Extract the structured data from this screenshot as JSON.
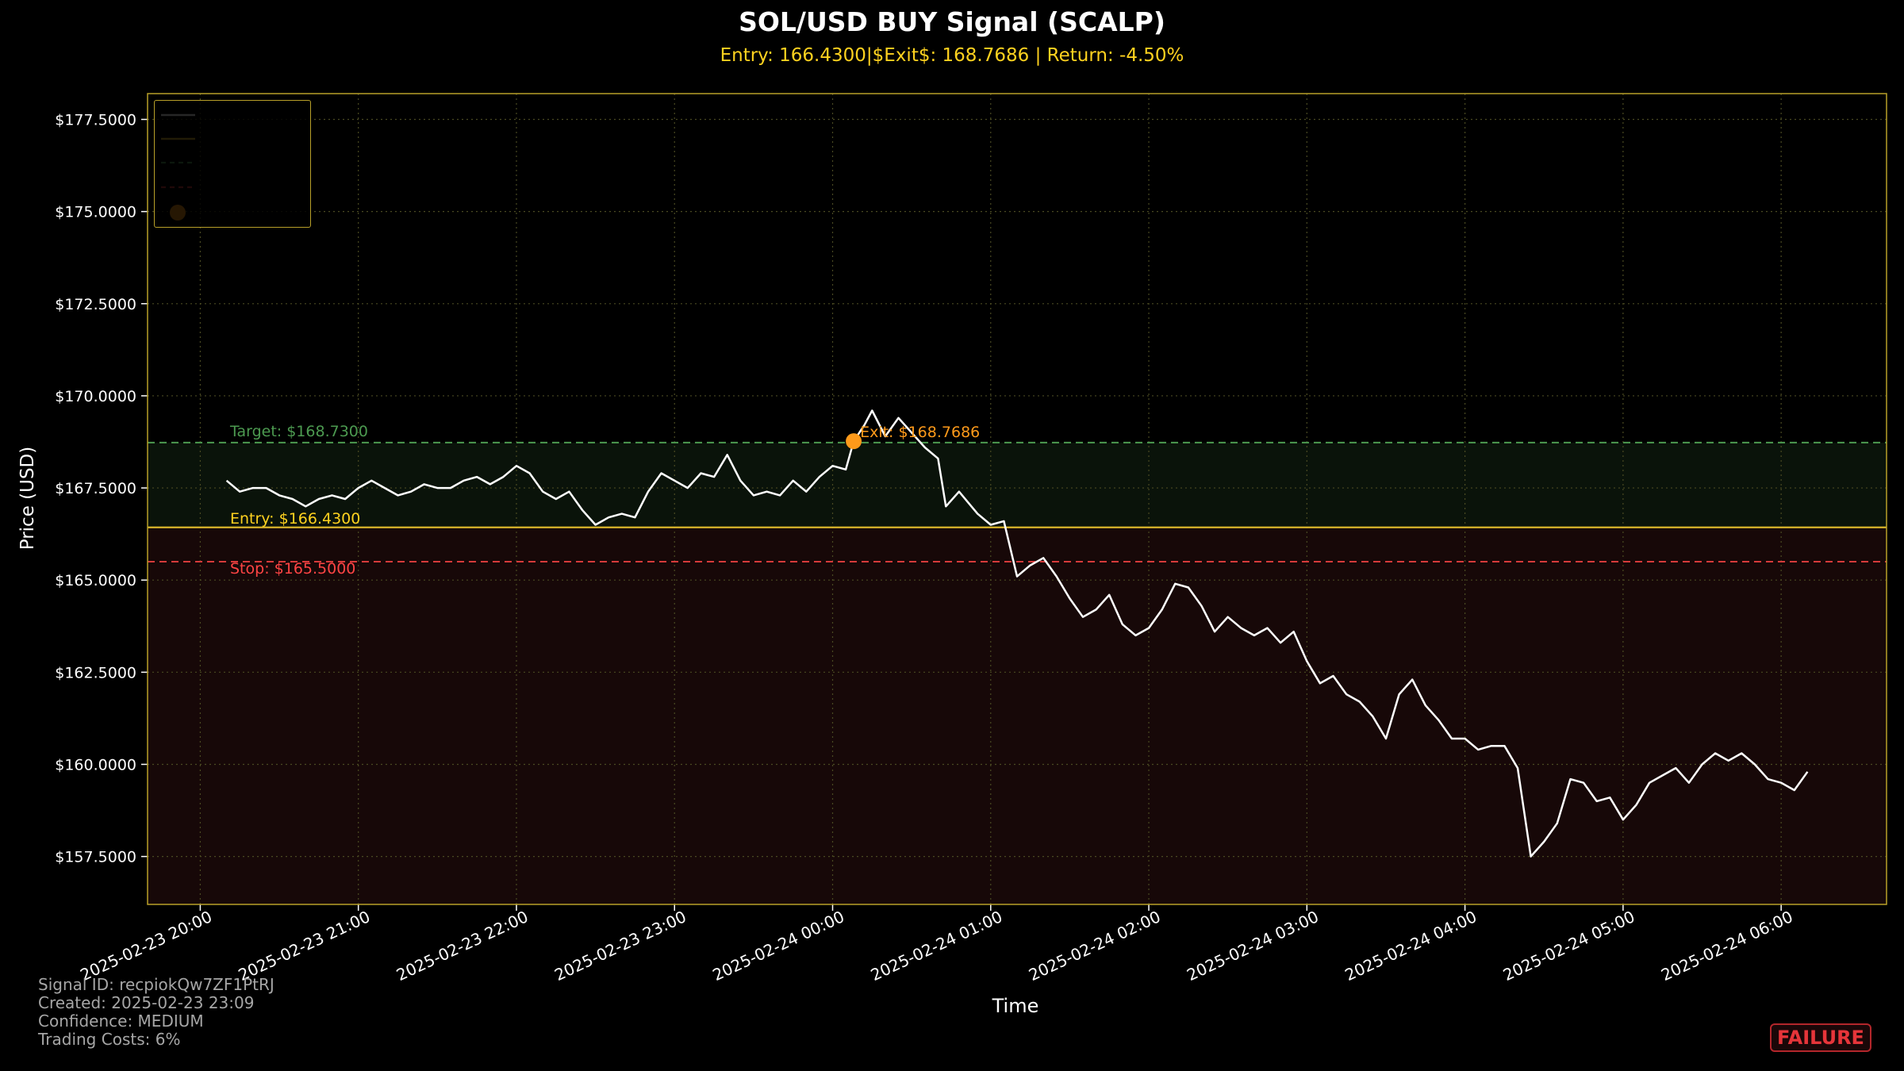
{
  "header": {
    "title": "SOL/USD BUY Signal (SCALP)",
    "subtitle": "Entry: 166.4300|$Exit$: 168.7686 | Return: -4.50%"
  },
  "info": {
    "signal_id": "Signal ID: recpiokQw7ZF1PtRJ",
    "created": "Created: 2025-02-23 23:09",
    "confidence": "Confidence: MEDIUM",
    "trading_costs": "Trading Costs: 6%"
  },
  "status_badge": "FAILURE",
  "chart_data": {
    "type": "line",
    "xlabel": "Time",
    "ylabel": "Price (USD)",
    "ylim": [
      156.2,
      178.2
    ],
    "xlim": [
      "2025-02-23 19:40",
      "2025-02-24 06:40"
    ],
    "yticks": [
      "$157.5000",
      "$160.0000",
      "$162.5000",
      "$165.0000",
      "$167.5000",
      "$170.0000",
      "$172.5000",
      "$175.0000",
      "$177.5000"
    ],
    "ytick_values": [
      157.5,
      160,
      162.5,
      165,
      167.5,
      170,
      172.5,
      175,
      177.5
    ],
    "xticks": [
      "2025-02-23 20:00",
      "2025-02-23 21:00",
      "2025-02-23 22:00",
      "2025-02-23 23:00",
      "2025-02-24 00:00",
      "2025-02-24 01:00",
      "2025-02-24 02:00",
      "2025-02-24 03:00",
      "2025-02-24 04:00",
      "2025-02-24 05:00",
      "2025-02-24 06:00"
    ],
    "grid": true,
    "legend": "upper-left",
    "colors": {
      "price": "#ffffff",
      "entry": "#d9b52a",
      "target": "#4c9a50",
      "stop": "#d63a3a",
      "exit": "#ff9a1a",
      "frame": "#b8a029",
      "target_zone": "#0a130a",
      "stop_zone": "#170808"
    },
    "levels": {
      "entry": {
        "value": 166.43,
        "label": "Entry: $166.4300"
      },
      "target": {
        "value": 168.73,
        "label": "Target: $168.7300"
      },
      "stop": {
        "value": 165.5,
        "label": "Stop: $165.5000"
      }
    },
    "exit_point": {
      "time": "2025-02-24 00:08",
      "value": 168.7686,
      "label": "Exit: $168.7686"
    },
    "series": [
      {
        "points": [
          [
            "2025-02-23 20:10",
            167.7
          ],
          [
            "2025-02-23 20:15",
            167.4
          ],
          [
            "2025-02-23 20:20",
            167.5
          ],
          [
            "2025-02-23 20:25",
            167.5
          ],
          [
            "2025-02-23 20:30",
            167.3
          ],
          [
            "2025-02-23 20:35",
            167.2
          ],
          [
            "2025-02-23 20:40",
            167.0
          ],
          [
            "2025-02-23 20:45",
            167.2
          ],
          [
            "2025-02-23 20:50",
            167.3
          ],
          [
            "2025-02-23 20:55",
            167.2
          ],
          [
            "2025-02-23 21:00",
            167.5
          ],
          [
            "2025-02-23 21:05",
            167.7
          ],
          [
            "2025-02-23 21:10",
            167.5
          ],
          [
            "2025-02-23 21:15",
            167.3
          ],
          [
            "2025-02-23 21:20",
            167.4
          ],
          [
            "2025-02-23 21:25",
            167.6
          ],
          [
            "2025-02-23 21:30",
            167.5
          ],
          [
            "2025-02-23 21:35",
            167.5
          ],
          [
            "2025-02-23 21:40",
            167.7
          ],
          [
            "2025-02-23 21:45",
            167.8
          ],
          [
            "2025-02-23 21:50",
            167.6
          ],
          [
            "2025-02-23 21:55",
            167.8
          ],
          [
            "2025-02-23 22:00",
            168.1
          ],
          [
            "2025-02-23 22:05",
            167.9
          ],
          [
            "2025-02-23 22:10",
            167.4
          ],
          [
            "2025-02-23 22:15",
            167.2
          ],
          [
            "2025-02-23 22:20",
            167.4
          ],
          [
            "2025-02-23 22:25",
            166.9
          ],
          [
            "2025-02-23 22:30",
            166.5
          ],
          [
            "2025-02-23 22:35",
            166.7
          ],
          [
            "2025-02-23 22:40",
            166.8
          ],
          [
            "2025-02-23 22:45",
            166.7
          ],
          [
            "2025-02-23 22:50",
            167.4
          ],
          [
            "2025-02-23 22:55",
            167.9
          ],
          [
            "2025-02-23 23:00",
            167.7
          ],
          [
            "2025-02-23 23:05",
            167.5
          ],
          [
            "2025-02-23 23:10",
            167.9
          ],
          [
            "2025-02-23 23:15",
            167.8
          ],
          [
            "2025-02-23 23:20",
            168.4
          ],
          [
            "2025-02-23 23:25",
            167.7
          ],
          [
            "2025-02-23 23:30",
            167.3
          ],
          [
            "2025-02-23 23:35",
            167.4
          ],
          [
            "2025-02-23 23:40",
            167.3
          ],
          [
            "2025-02-23 23:45",
            167.7
          ],
          [
            "2025-02-23 23:50",
            167.4
          ],
          [
            "2025-02-23 23:55",
            167.8
          ],
          [
            "2025-02-24 00:00",
            168.1
          ],
          [
            "2025-02-24 00:05",
            168.0
          ],
          [
            "2025-02-24 00:08",
            168.77
          ],
          [
            "2025-02-24 00:12",
            169.2
          ],
          [
            "2025-02-24 00:15",
            169.6
          ],
          [
            "2025-02-24 00:20",
            168.9
          ],
          [
            "2025-02-24 00:25",
            169.4
          ],
          [
            "2025-02-24 00:30",
            169.0
          ],
          [
            "2025-02-24 00:35",
            168.6
          ],
          [
            "2025-02-24 00:40",
            168.3
          ],
          [
            "2025-02-24 00:43",
            167.0
          ],
          [
            "2025-02-24 00:48",
            167.4
          ],
          [
            "2025-02-24 00:55",
            166.8
          ],
          [
            "2025-02-24 01:00",
            166.5
          ],
          [
            "2025-02-24 01:05",
            166.6
          ],
          [
            "2025-02-24 01:10",
            165.1
          ],
          [
            "2025-02-24 01:15",
            165.4
          ],
          [
            "2025-02-24 01:20",
            165.6
          ],
          [
            "2025-02-24 01:25",
            165.1
          ],
          [
            "2025-02-24 01:30",
            164.5
          ],
          [
            "2025-02-24 01:35",
            164.0
          ],
          [
            "2025-02-24 01:40",
            164.2
          ],
          [
            "2025-02-24 01:45",
            164.6
          ],
          [
            "2025-02-24 01:50",
            163.8
          ],
          [
            "2025-02-24 01:55",
            163.5
          ],
          [
            "2025-02-24 02:00",
            163.7
          ],
          [
            "2025-02-24 02:05",
            164.2
          ],
          [
            "2025-02-24 02:10",
            164.9
          ],
          [
            "2025-02-24 02:15",
            164.8
          ],
          [
            "2025-02-24 02:20",
            164.3
          ],
          [
            "2025-02-24 02:25",
            163.6
          ],
          [
            "2025-02-24 02:30",
            164.0
          ],
          [
            "2025-02-24 02:35",
            163.7
          ],
          [
            "2025-02-24 02:40",
            163.5
          ],
          [
            "2025-02-24 02:45",
            163.7
          ],
          [
            "2025-02-24 02:50",
            163.3
          ],
          [
            "2025-02-24 02:55",
            163.6
          ],
          [
            "2025-02-24 03:00",
            162.8
          ],
          [
            "2025-02-24 03:05",
            162.2
          ],
          [
            "2025-02-24 03:10",
            162.4
          ],
          [
            "2025-02-24 03:15",
            161.9
          ],
          [
            "2025-02-24 03:20",
            161.7
          ],
          [
            "2025-02-24 03:25",
            161.3
          ],
          [
            "2025-02-24 03:30",
            160.7
          ],
          [
            "2025-02-24 03:35",
            161.9
          ],
          [
            "2025-02-24 03:40",
            162.3
          ],
          [
            "2025-02-24 03:45",
            161.6
          ],
          [
            "2025-02-24 03:50",
            161.2
          ],
          [
            "2025-02-24 03:55",
            160.7
          ],
          [
            "2025-02-24 04:00",
            160.7
          ],
          [
            "2025-02-24 04:05",
            160.4
          ],
          [
            "2025-02-24 04:10",
            160.5
          ],
          [
            "2025-02-24 04:15",
            160.5
          ],
          [
            "2025-02-24 04:20",
            159.9
          ],
          [
            "2025-02-24 04:25",
            157.5
          ],
          [
            "2025-02-24 04:30",
            157.9
          ],
          [
            "2025-02-24 04:35",
            158.4
          ],
          [
            "2025-02-24 04:40",
            159.6
          ],
          [
            "2025-02-24 04:45",
            159.5
          ],
          [
            "2025-02-24 04:50",
            159.0
          ],
          [
            "2025-02-24 04:55",
            159.1
          ],
          [
            "2025-02-24 05:00",
            158.5
          ],
          [
            "2025-02-24 05:05",
            158.9
          ],
          [
            "2025-02-24 05:10",
            159.5
          ],
          [
            "2025-02-24 05:15",
            159.7
          ],
          [
            "2025-02-24 05:20",
            159.9
          ],
          [
            "2025-02-24 05:25",
            159.5
          ],
          [
            "2025-02-24 05:30",
            160.0
          ],
          [
            "2025-02-24 05:35",
            160.3
          ],
          [
            "2025-02-24 05:40",
            160.1
          ],
          [
            "2025-02-24 05:45",
            160.3
          ],
          [
            "2025-02-24 05:50",
            160.0
          ],
          [
            "2025-02-24 05:55",
            159.6
          ],
          [
            "2025-02-24 06:00",
            159.5
          ],
          [
            "2025-02-24 06:05",
            159.3
          ],
          [
            "2025-02-24 06:10",
            159.8
          ]
        ]
      }
    ]
  }
}
